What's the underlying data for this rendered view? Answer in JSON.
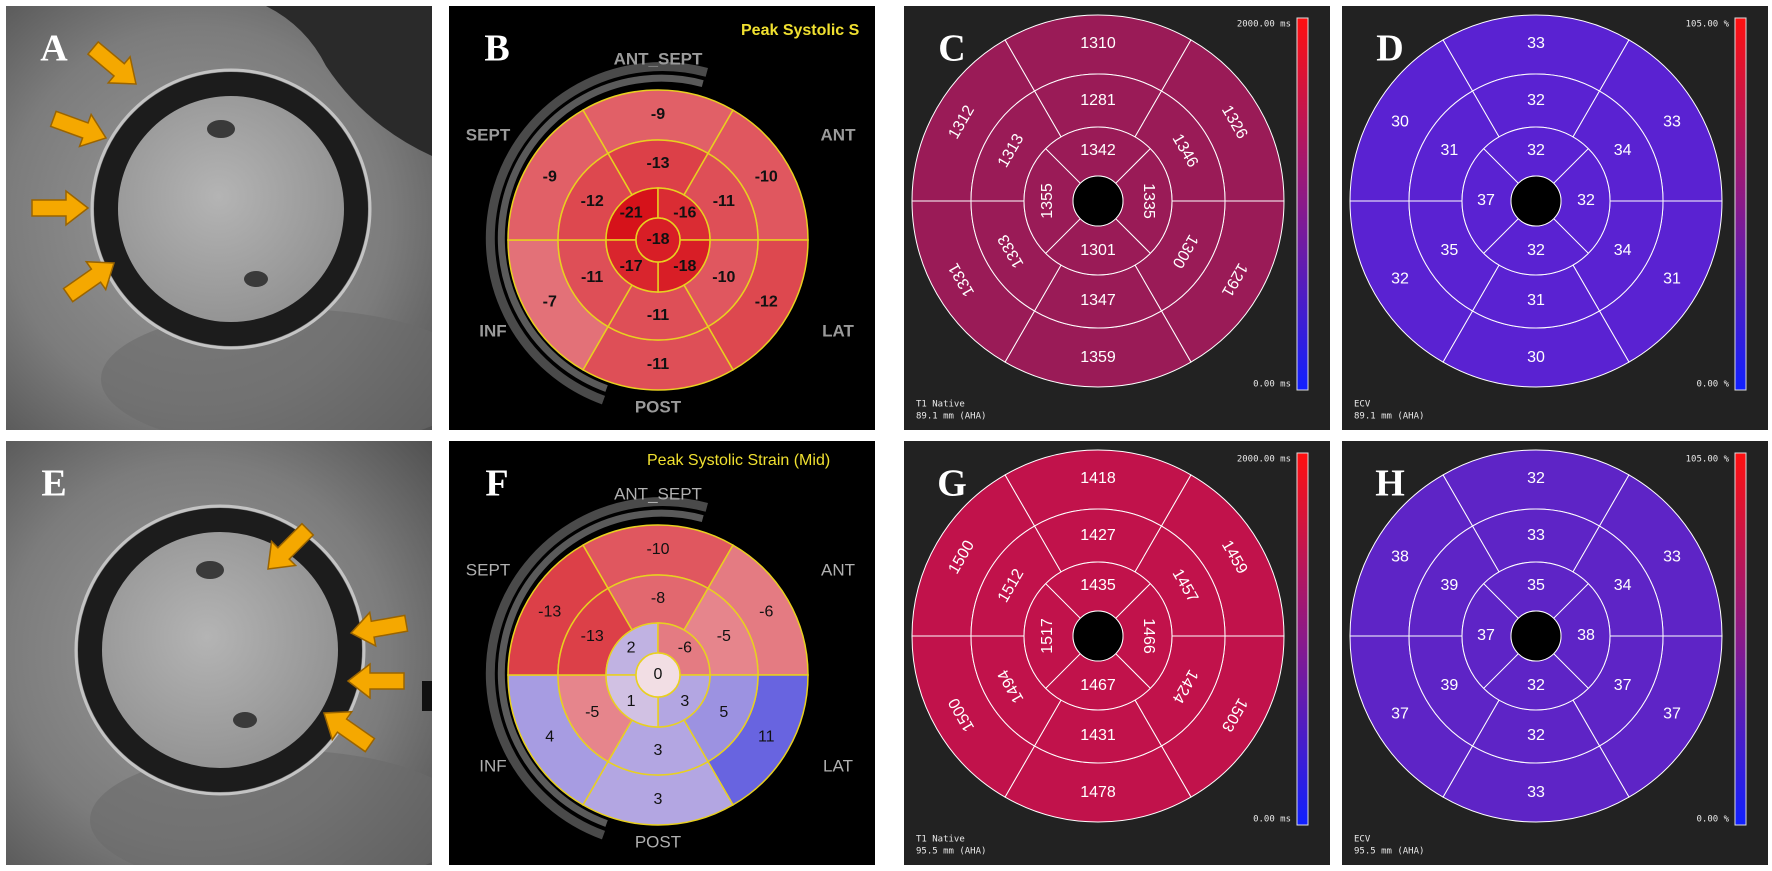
{
  "panels": [
    {
      "letter": "A"
    },
    {
      "letter": "B",
      "title": "Peak Systolic S",
      "walls": [
        "ANT_SEPT",
        "ANT",
        "LAT",
        "POST",
        "INF",
        "SEPT"
      ],
      "basal": [
        -9,
        -10,
        -12,
        -11,
        -7,
        -9
      ],
      "mid": [
        -13,
        -11,
        -10,
        -11,
        -11,
        -12
      ],
      "apical": [
        -21,
        -16,
        -18,
        -17
      ],
      "apex": -18
    },
    {
      "letter": "C",
      "basal": [
        1310,
        1326,
        1291,
        1359,
        1331,
        1312
      ],
      "mid": [
        1281,
        1346,
        1300,
        1347,
        1333,
        1313
      ],
      "apical": [
        1342,
        1335,
        1301,
        1355
      ],
      "scale_max": "2000.00 ms",
      "scale_min": "0.00 ms",
      "map": "T1 Native",
      "depth": "89.1 mm (AHA)",
      "color": "#9a1b57"
    },
    {
      "letter": "D",
      "basal": [
        33,
        33,
        31,
        30,
        32,
        30
      ],
      "mid": [
        32,
        34,
        34,
        31,
        35,
        31
      ],
      "apical": [
        32,
        32,
        32,
        37
      ],
      "scale_max": "105.00 %",
      "scale_min": "0.00 %",
      "map": "ECV",
      "depth": "89.1 mm (AHA)",
      "color": "#5a22d2"
    },
    {
      "letter": "E"
    },
    {
      "letter": "F",
      "title": "Peak Systolic Strain (Mid)",
      "walls": [
        "ANT_SEPT",
        "ANT",
        "LAT",
        "POST",
        "INF",
        "SEPT"
      ],
      "basal": [
        -10,
        -6,
        11,
        3,
        4,
        -13
      ],
      "mid": [
        -8,
        -5,
        5,
        3,
        -5,
        -13
      ],
      "apical": [
        2,
        -6,
        3,
        1
      ],
      "apex": 0
    },
    {
      "letter": "G",
      "basal": [
        1418,
        1459,
        1503,
        1478,
        1500,
        1500
      ],
      "mid": [
        1427,
        1457,
        1424,
        1431,
        1494,
        1512
      ],
      "apical": [
        1435,
        1466,
        1467,
        1517
      ],
      "scale_max": "2000.00 ms",
      "scale_min": "0.00 ms",
      "map": "T1 Native",
      "depth": "95.5 mm (AHA)",
      "color": "#c1124b"
    },
    {
      "letter": "H",
      "basal": [
        32,
        33,
        37,
        33,
        37,
        38
      ],
      "mid": [
        33,
        34,
        37,
        32,
        39,
        39
      ],
      "apical": [
        35,
        38,
        32,
        37
      ],
      "scale_max": "105.00 %",
      "scale_min": "0.00 %",
      "map": "ECV",
      "depth": "95.5 mm (AHA)",
      "color": "#5e24c6"
    }
  ]
}
